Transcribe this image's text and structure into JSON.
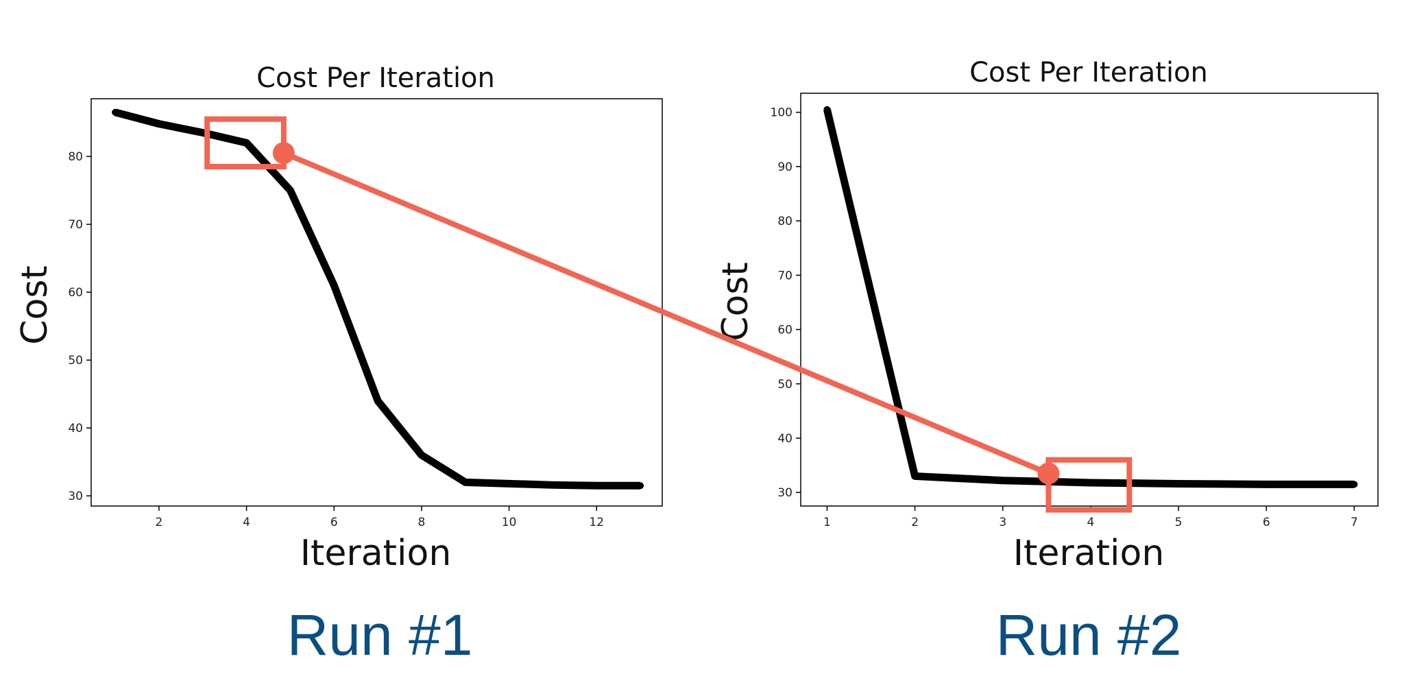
{
  "chart_data": [
    {
      "type": "line",
      "title": "Cost Per Iteration",
      "xlabel": "Iteration",
      "ylabel": "Cost",
      "caption": "Run #1",
      "xlim": [
        0.45,
        13.5
      ],
      "ylim": [
        28.5,
        88.5
      ],
      "xticks": [
        2,
        4,
        6,
        8,
        10,
        12
      ],
      "yticks": [
        30,
        40,
        50,
        60,
        70,
        80
      ],
      "grid": false,
      "series": [
        {
          "color": "#000000",
          "x": [
            1,
            2,
            3,
            4,
            5,
            6,
            7,
            8,
            9,
            10,
            11,
            12,
            13
          ],
          "y": [
            86.5,
            84.8,
            83.5,
            82.0,
            75.0,
            61.0,
            44.0,
            36.0,
            32.0,
            31.8,
            31.6,
            31.5,
            31.5
          ]
        }
      ],
      "highlight": {
        "x": [
          3.1,
          4.85
        ],
        "y": [
          78.5,
          85.5
        ]
      },
      "marker": {
        "x": 4.85,
        "y": 80.5
      }
    },
    {
      "type": "line",
      "title": "Cost Per Iteration",
      "xlabel": "Iteration",
      "ylabel": "Cost",
      "caption": "Run #2",
      "xlim": [
        0.7,
        7.27
      ],
      "ylim": [
        27.5,
        103.5
      ],
      "xticks": [
        1,
        2,
        3,
        4,
        5,
        6,
        7
      ],
      "yticks": [
        30,
        40,
        50,
        60,
        70,
        80,
        90,
        100
      ],
      "grid": false,
      "series": [
        {
          "color": "#000000",
          "x": [
            1,
            2,
            3,
            4,
            5,
            6,
            7
          ],
          "y": [
            100.5,
            33.0,
            32.2,
            31.8,
            31.6,
            31.5,
            31.5
          ]
        }
      ],
      "highlight": {
        "x": [
          3.52,
          4.44
        ],
        "y": [
          26.8,
          36.0
        ]
      },
      "marker": {
        "x": 3.52,
        "y": 33.5
      }
    }
  ],
  "colors": {
    "line": "#000000",
    "highlight": "#f26552",
    "run_label": "#0b4f82"
  }
}
